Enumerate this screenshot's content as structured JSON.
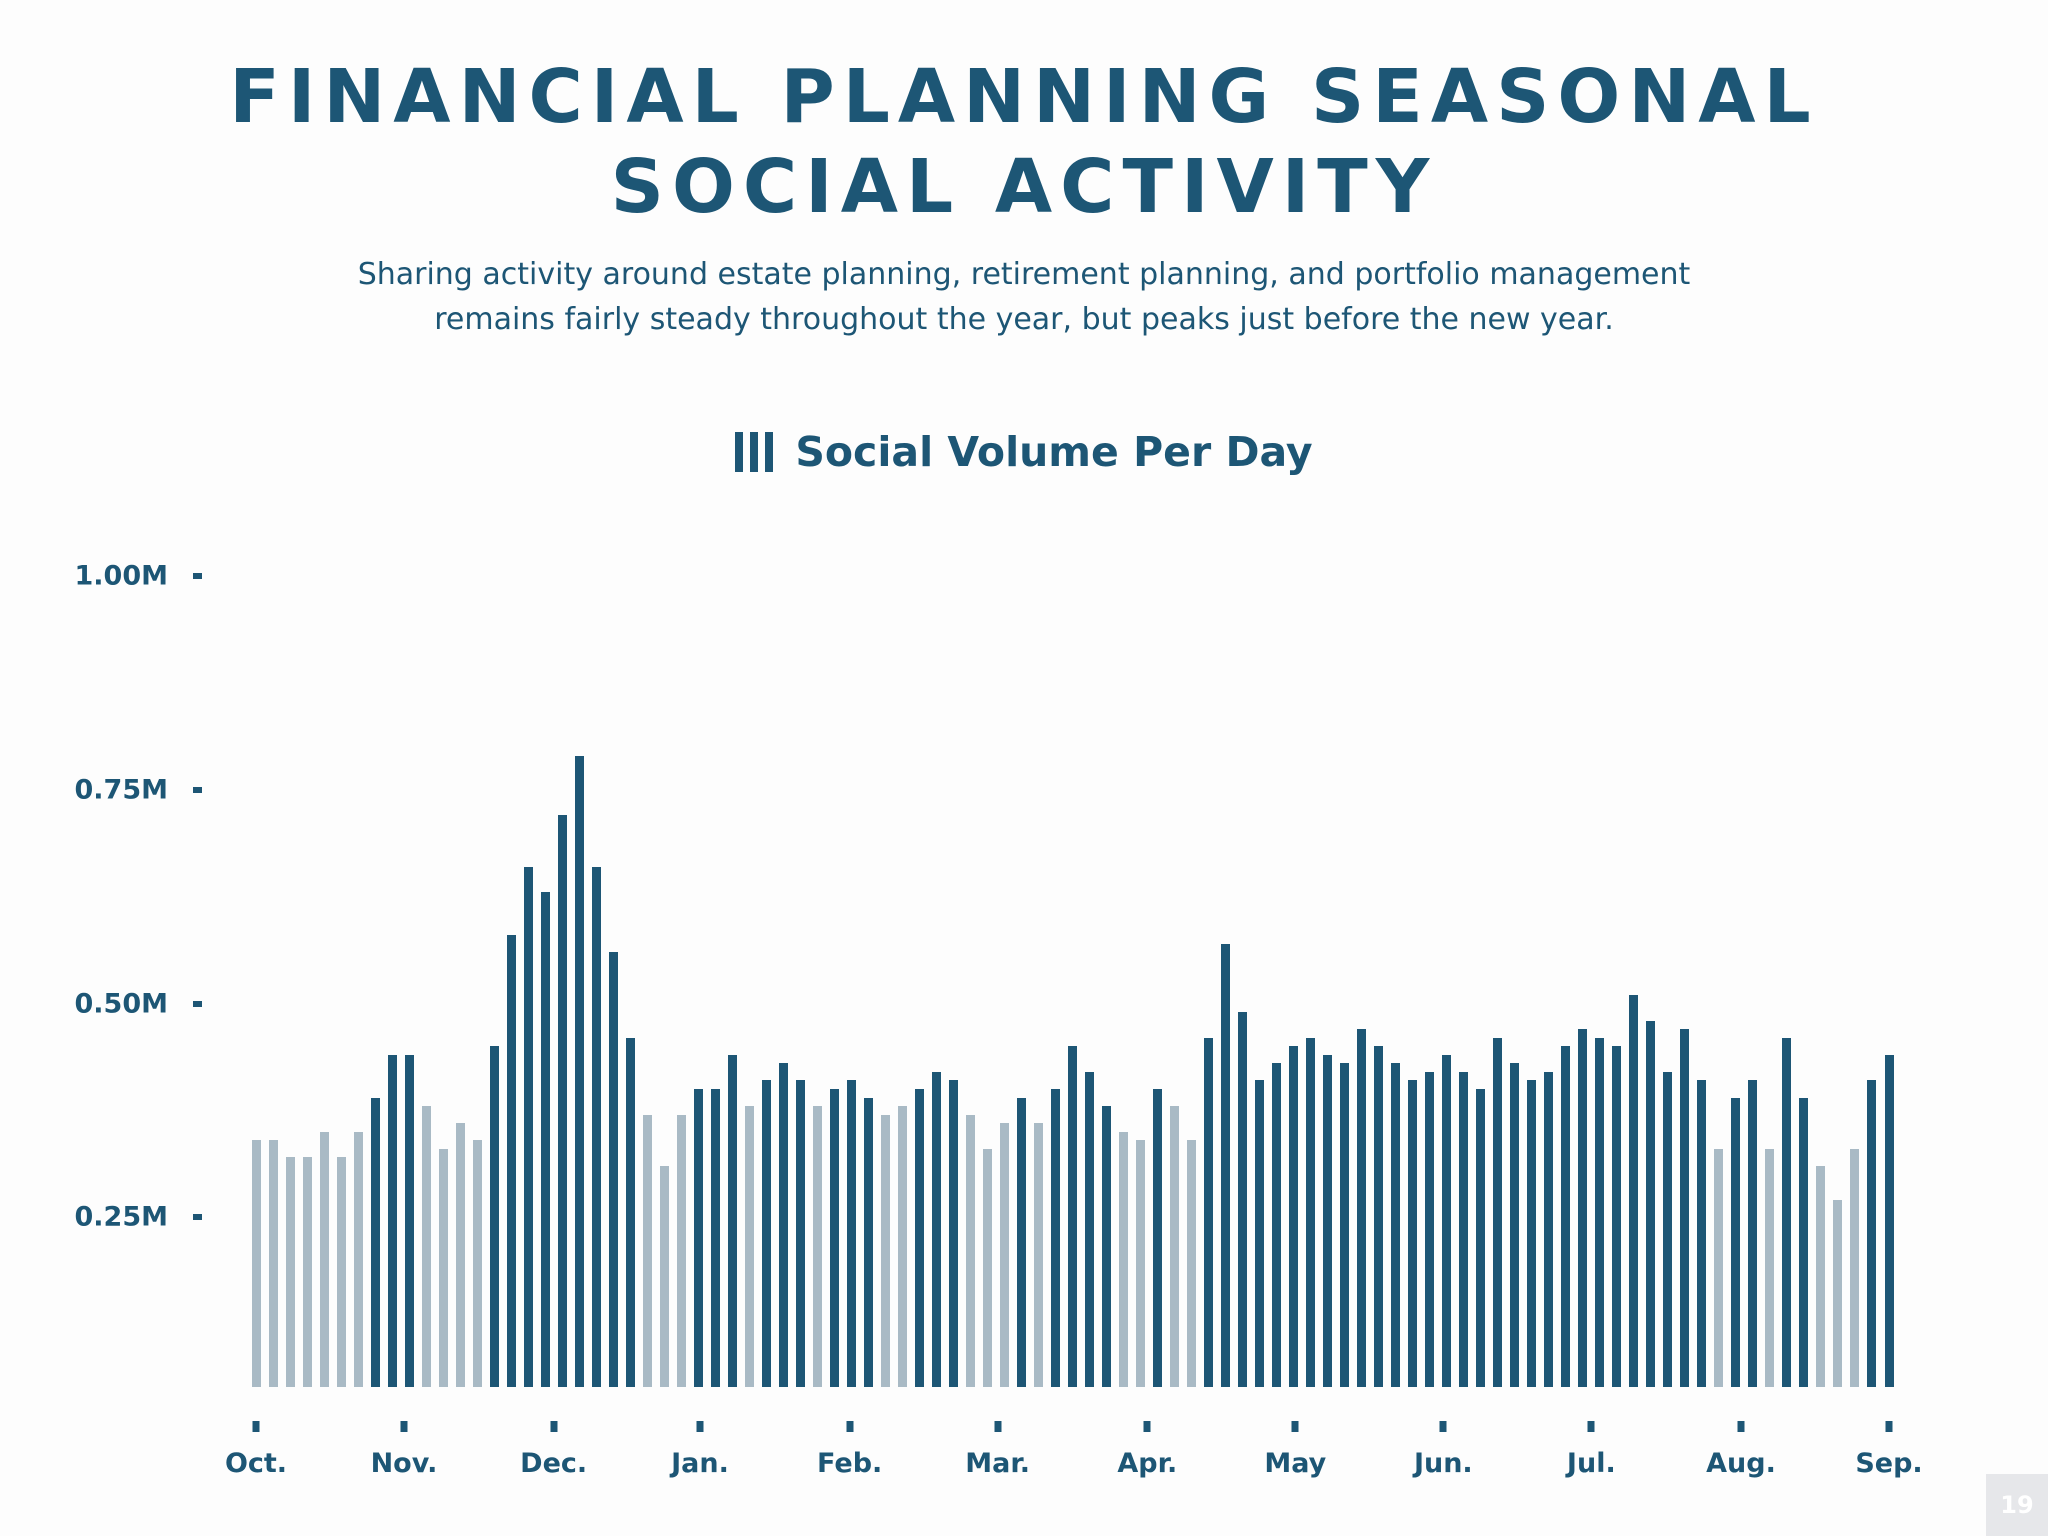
{
  "header": {
    "title_line1": "FINANCIAL PLANNING SEASONAL",
    "title_line2": "SOCIAL ACTIVITY",
    "subtitle_line1": "Sharing activity around estate planning, retirement planning, and portfolio management",
    "subtitle_line2": "remains fairly steady throughout the year, but peaks just before the new year."
  },
  "legend": {
    "icon": "bar-chart-icon",
    "label": "Social Volume Per Day"
  },
  "page_number": "19",
  "colors": {
    "primary": "#1d5675",
    "muted": "#a9bac5",
    "background": "#fdfdfd"
  },
  "chart_data": {
    "type": "bar",
    "title": "Social Volume Per Day",
    "xlabel": "",
    "ylabel": "",
    "ylim": [
      0,
      1.0
    ],
    "y_unit": "M",
    "y_ticks": [
      {
        "label": "1.00M",
        "value": 1.0
      },
      {
        "label": "0.75M",
        "value": 0.75
      },
      {
        "label": "0.50M",
        "value": 0.5
      },
      {
        "label": "0.25M",
        "value": 0.25
      }
    ],
    "x_ticks": [
      {
        "label": "Oct.",
        "index": 0
      },
      {
        "label": "Nov.",
        "index": 8.7
      },
      {
        "label": "Dec.",
        "index": 17.5
      },
      {
        "label": "Jan.",
        "index": 26.1
      },
      {
        "label": "Feb.",
        "index": 34.9
      },
      {
        "label": "Mar.",
        "index": 43.6
      },
      {
        "label": "Apr.",
        "index": 52.4
      },
      {
        "label": "May",
        "index": 61.1
      },
      {
        "label": "Jun.",
        "index": 69.8
      },
      {
        "label": "Jul.",
        "index": 78.5
      },
      {
        "label": "Aug.",
        "index": 87.3
      },
      {
        "label": "Sep.",
        "index": 96
      }
    ],
    "grid": false,
    "legend_position": "top-center",
    "series": [
      {
        "name": "Social Volume Per Day",
        "values": [
          0.34,
          0.34,
          0.32,
          0.32,
          0.35,
          0.32,
          0.35,
          0.39,
          0.44,
          0.44,
          0.38,
          0.33,
          0.36,
          0.34,
          0.45,
          0.58,
          0.66,
          0.63,
          0.72,
          0.79,
          0.66,
          0.56,
          0.46,
          0.37,
          0.31,
          0.37,
          0.4,
          0.4,
          0.44,
          0.38,
          0.41,
          0.43,
          0.41,
          0.38,
          0.4,
          0.41,
          0.39,
          0.37,
          0.38,
          0.4,
          0.42,
          0.41,
          0.37,
          0.33,
          0.36,
          0.39,
          0.36,
          0.4,
          0.45,
          0.42,
          0.38,
          0.35,
          0.34,
          0.4,
          0.38,
          0.34,
          0.46,
          0.57,
          0.49,
          0.41,
          0.43,
          0.45,
          0.46,
          0.44,
          0.43,
          0.47,
          0.45,
          0.43,
          0.41,
          0.42,
          0.44,
          0.42,
          0.4,
          0.46,
          0.43,
          0.41,
          0.42,
          0.45,
          0.47,
          0.46,
          0.45,
          0.51,
          0.48,
          0.42,
          0.47,
          0.41,
          0.33,
          0.39,
          0.41,
          0.33,
          0.46,
          0.39,
          0.31,
          0.27,
          0.33,
          0.41,
          0.44
        ],
        "highlighted": [
          0,
          0,
          0,
          0,
          0,
          0,
          0,
          1,
          1,
          1,
          0,
          0,
          0,
          0,
          1,
          1,
          1,
          1,
          1,
          1,
          1,
          1,
          1,
          0,
          0,
          0,
          1,
          1,
          1,
          0,
          1,
          1,
          1,
          0,
          1,
          1,
          1,
          0,
          0,
          1,
          1,
          1,
          0,
          0,
          0,
          1,
          0,
          1,
          1,
          1,
          1,
          0,
          0,
          1,
          0,
          0,
          1,
          1,
          1,
          1,
          1,
          1,
          1,
          1,
          1,
          1,
          1,
          1,
          1,
          1,
          1,
          1,
          1,
          1,
          1,
          1,
          1,
          1,
          1,
          1,
          1,
          1,
          1,
          1,
          1,
          1,
          0,
          1,
          1,
          0,
          1,
          1,
          0,
          0,
          0,
          1,
          1
        ]
      }
    ]
  }
}
